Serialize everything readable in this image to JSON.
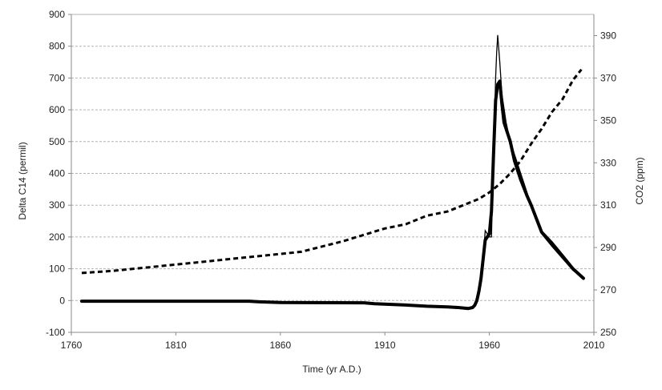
{
  "chart_data": {
    "type": "line",
    "xlabel": "Time (yr A.D.)",
    "ylabel_left": "Delta C14 (permil)",
    "ylabel_right": "CO2 (ppm)",
    "xlim": [
      1760,
      2010
    ],
    "ylim_left": [
      -100,
      900
    ],
    "ylim_right": [
      250,
      400
    ],
    "x_ticks": [
      1760,
      1810,
      1860,
      1910,
      1960,
      2010
    ],
    "y_left_ticks": [
      -100,
      0,
      100,
      200,
      300,
      400,
      500,
      600,
      700,
      800,
      900
    ],
    "y_right_ticks": [
      250,
      270,
      290,
      310,
      330,
      350,
      370,
      390
    ],
    "grid": "horizontal",
    "legend": "none",
    "series": [
      {
        "axis": "left",
        "style": "thin-solid",
        "x": [
          1765,
          1800,
          1850,
          1890,
          1910,
          1930,
          1945,
          1950,
          1953,
          1955,
          1957,
          1958,
          1960,
          1961,
          1962,
          1963,
          1963.5,
          1964,
          1965,
          1966,
          1968,
          1970,
          1975,
          1980,
          1985,
          1990,
          2000,
          2005
        ],
        "values": [
          -2,
          -2,
          -4,
          -6,
          -10,
          -18,
          -25,
          -25,
          -15,
          40,
          130,
          220,
          200,
          200,
          450,
          700,
          780,
          835,
          750,
          650,
          560,
          500,
          400,
          300,
          210,
          170,
          95,
          72
        ]
      },
      {
        "axis": "left",
        "style": "thick-solid",
        "x": [
          1765,
          1800,
          1845,
          1850,
          1860,
          1900,
          1905,
          1920,
          1930,
          1940,
          1945,
          1950,
          1952,
          1953,
          1954,
          1955,
          1956,
          1957,
          1958,
          1960,
          1961,
          1962,
          1963,
          1964,
          1965,
          1966,
          1967,
          1968,
          1970,
          1972,
          1975,
          1978,
          1980,
          1985,
          1990,
          1995,
          2000,
          2005
        ],
        "values": [
          -2,
          -2,
          -2,
          -4,
          -6,
          -7,
          -10,
          -14,
          -18,
          -20,
          -22,
          -25,
          -22,
          -15,
          0,
          30,
          70,
          130,
          190,
          210,
          280,
          460,
          630,
          680,
          690,
          620,
          560,
          540,
          500,
          440,
          380,
          330,
          300,
          215,
          180,
          140,
          100,
          70
        ]
      },
      {
        "axis": "right",
        "style": "dashed",
        "x": [
          1765,
          1780,
          1800,
          1820,
          1850,
          1870,
          1890,
          1910,
          1920,
          1930,
          1940,
          1950,
          1955,
          1960,
          1965,
          1970,
          1975,
          1980,
          1985,
          1990,
          1995,
          2000,
          2004
        ],
        "values": [
          278,
          279,
          281,
          283,
          286,
          288,
          293,
          299,
          301,
          305,
          307,
          311,
          313,
          316,
          320,
          325,
          331,
          339,
          346,
          354,
          360,
          369,
          374
        ]
      }
    ]
  }
}
